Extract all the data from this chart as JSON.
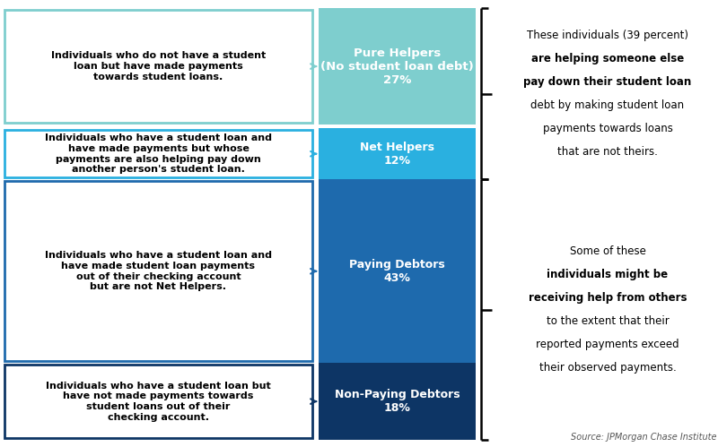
{
  "segments": [
    {
      "label": "Pure Helpers\n(No student loan debt)\n27%",
      "pct": 27,
      "color": "#7ecece",
      "border": "#7ecece"
    },
    {
      "label": "Net Helpers\n12%",
      "pct": 12,
      "color": "#2ab0e0",
      "border": "#2ab0e0"
    },
    {
      "label": "Paying Debtors\n43%",
      "pct": 43,
      "color": "#1e6aad",
      "border": "#1e6aad"
    },
    {
      "label": "Non-Paying Debtors\n18%",
      "pct": 18,
      "color": "#0d3565",
      "border": "#0d3565"
    }
  ],
  "left_boxes": [
    {
      "text": "Individuals who do not have a student\nloan but have made payments\ntowards student loans.",
      "border": "#7ecece"
    },
    {
      "text": "Individuals who have a student loan and\nhave made payments but whose\npayments are also helping pay down\nanother person's student loan.",
      "border": "#2ab0e0"
    },
    {
      "text": "Individuals who have a student loan and\nhave made student loan payments\nout of their checking account\nbut are not Net Helpers.",
      "border": "#1e6aad"
    },
    {
      "text": "Individuals who have a student loan but\nhave not made payments towards\nstudent loans out of their\nchecking account.",
      "border": "#0d3565"
    }
  ],
  "right_lines_top": [
    {
      "text": "These individuals (39 percent)",
      "bold": false
    },
    {
      "text": "are ",
      "bold": false,
      "mixed": true,
      "parts": [
        [
          "are ",
          false
        ],
        [
          "helping someone else",
          true
        ]
      ]
    },
    {
      "text": "pay down their student loan",
      "bold": true,
      "mixed": true,
      "parts": [
        [
          "pay",
          true
        ],
        [
          " down their student loan",
          false
        ]
      ]
    },
    {
      "text": "debt by making student loan",
      "bold": false
    },
    {
      "text": "payments towards loans",
      "bold": false
    },
    {
      "text": "that are not theirs.",
      "bold": false
    }
  ],
  "right_lines_bottom": [
    {
      "text": "Some of these",
      "bold": false
    },
    {
      "text": "individuals ",
      "bold": false,
      "mixed": true,
      "parts": [
        [
          "individuals ",
          false
        ],
        [
          "might be",
          true
        ]
      ]
    },
    {
      "text": "receiving help",
      "bold": true,
      "mixed": true,
      "parts": [
        [
          "receiving help",
          true
        ],
        [
          " from others",
          false
        ]
      ]
    },
    {
      "text": "to the extent that their",
      "bold": false
    },
    {
      "text": "reported payments exceed",
      "bold": false
    },
    {
      "text": "their observed payments.",
      "bold": false
    }
  ],
  "source": "Source: JPMorgan Chase Institute",
  "bg_color": "#ffffff"
}
